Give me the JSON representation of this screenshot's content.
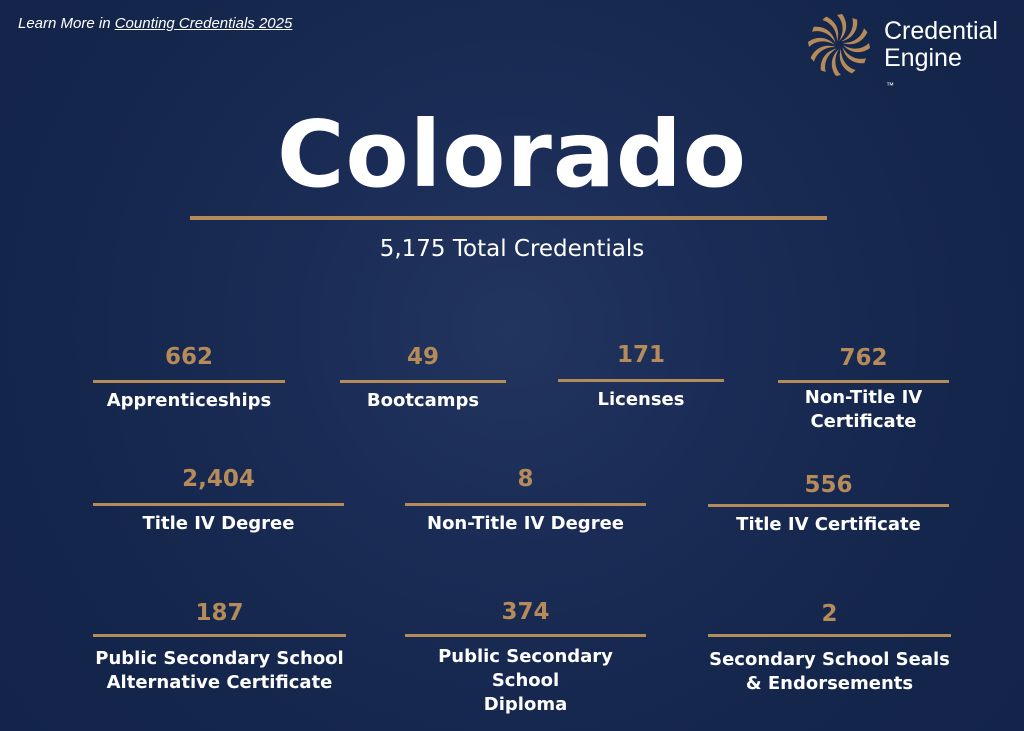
{
  "header": {
    "learn_prefix": "Learn More in ",
    "learn_link": "Counting Credentials 2025"
  },
  "brand": {
    "line1": "Credential",
    "line2": "Engine",
    "tm": "™",
    "colors": {
      "accent": "#b58b5a",
      "background": "#15264c"
    }
  },
  "state": {
    "name": "Colorado",
    "total": "5,175 Total Credentials"
  },
  "credentials": [
    {
      "count": "662",
      "label": "Apprenticeships"
    },
    {
      "count": "49",
      "label": "Bootcamps"
    },
    {
      "count": "171",
      "label": "Licenses"
    },
    {
      "count": "762",
      "label_line1": "Non-Title IV",
      "label_line2": "Certificate"
    },
    {
      "count": "2,404",
      "label": "Title IV Degree"
    },
    {
      "count": "8",
      "label": "Non-Title IV Degree"
    },
    {
      "count": "556",
      "label": "Title IV Certificate"
    },
    {
      "count": "187",
      "label_line1": "Public Secondary School",
      "label_line2": "Alternative Certificate"
    },
    {
      "count": "374",
      "label_line1": "Public Secondary School",
      "label_line2": "Diploma"
    },
    {
      "count": "2",
      "label_line1": "Secondary School Seals",
      "label_line2": "& Endorsements"
    }
  ]
}
